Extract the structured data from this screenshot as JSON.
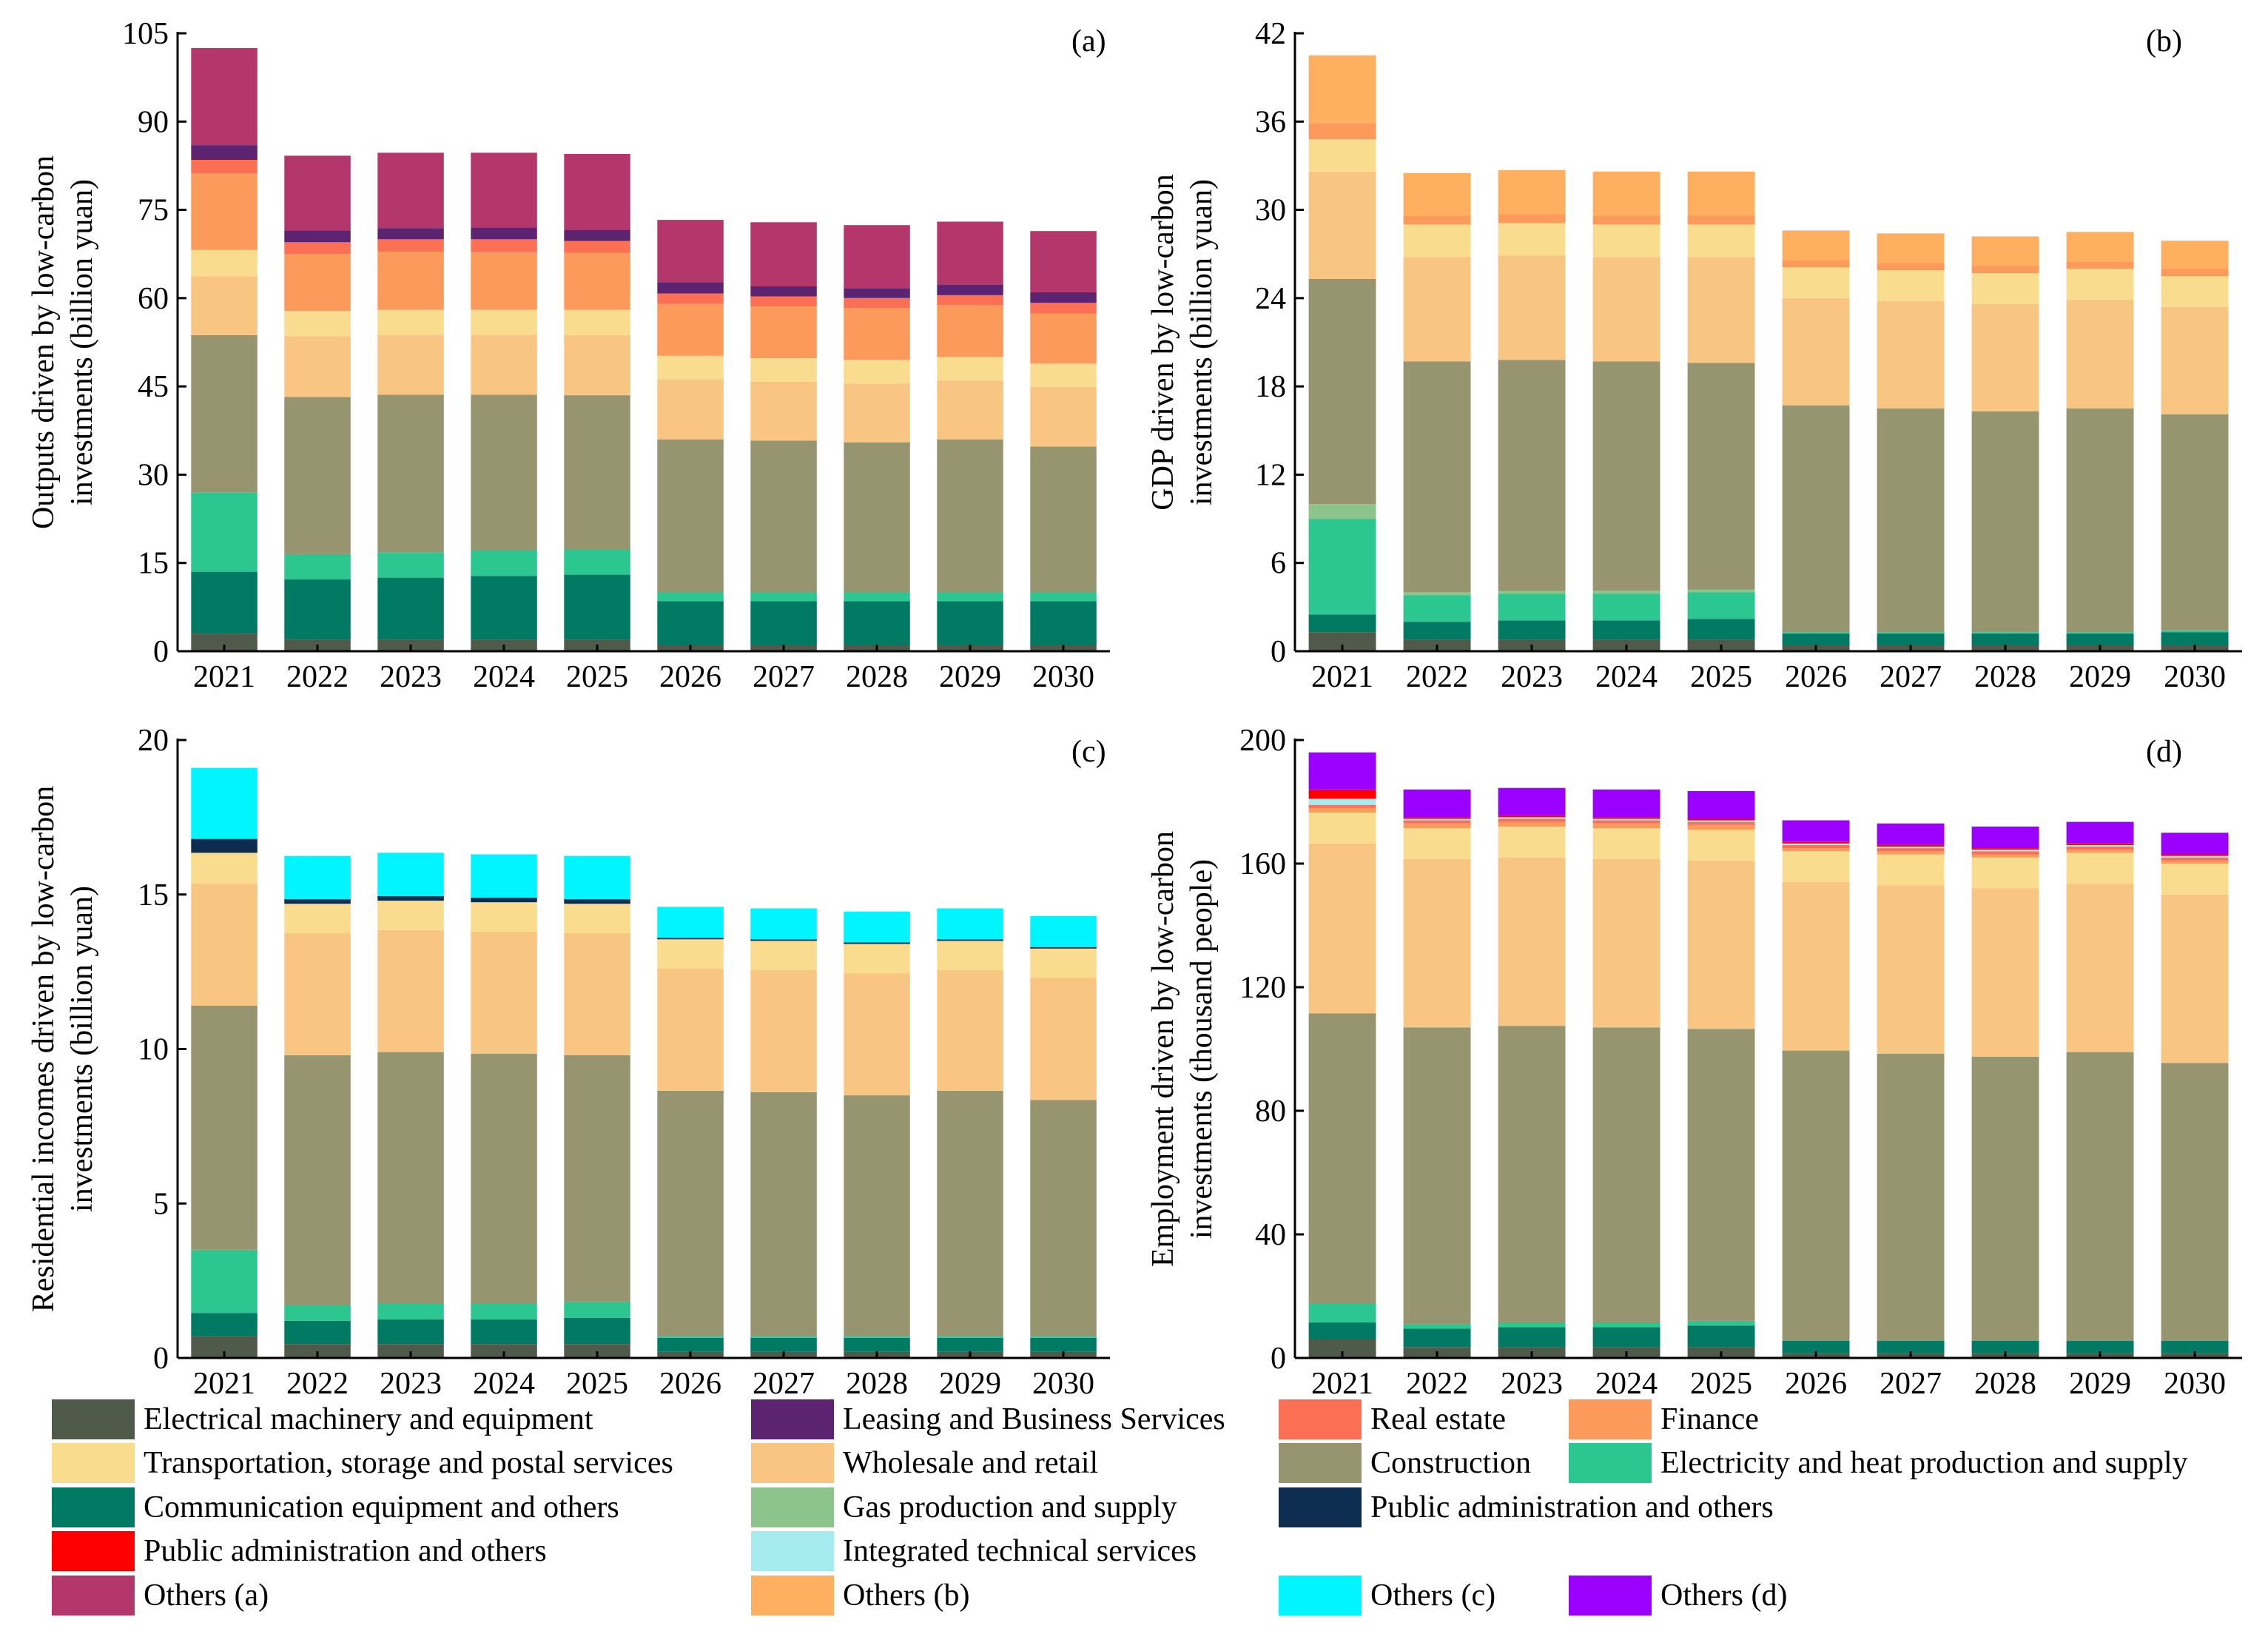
{
  "sectors": [
    {
      "key": "elec_mach",
      "name": "Electrical machinery and equipment",
      "color": "#4f5a4b"
    },
    {
      "key": "comm",
      "name": "Communication equipment and others",
      "color": "#007a63"
    },
    {
      "key": "elec_heat",
      "name": "Electricity and heat production and supply",
      "color": "#2cc791"
    },
    {
      "key": "gas",
      "name": "Gas production and supply",
      "color": "#8cc48b"
    },
    {
      "key": "construction",
      "name": "Construction",
      "color": "#979470"
    },
    {
      "key": "wholesale",
      "name": "Wholesale and retail",
      "color": "#f8c583"
    },
    {
      "key": "transport",
      "name": "Transportation, storage and postal services",
      "color": "#f9dc8e"
    },
    {
      "key": "finance",
      "name": "Finance",
      "color": "#fb9a5b"
    },
    {
      "key": "real_estate",
      "name": "Real estate",
      "color": "#fb6f55"
    },
    {
      "key": "leasing",
      "name": "Leasing and Business Services",
      "color": "#5c2470"
    },
    {
      "key": "pub_admin_navy",
      "name": "Public administration and others",
      "color": "#0c2d4f"
    },
    {
      "key": "pub_admin_red",
      "name": "Public administration and others",
      "color": "#ff0000"
    },
    {
      "key": "integrated",
      "name": "Integrated technical services",
      "color": "#a6ecef"
    },
    {
      "key": "others_a",
      "name": "Others (a)",
      "color": "#b3376a"
    },
    {
      "key": "others_b",
      "name": "Others (b)",
      "color": "#feb060"
    },
    {
      "key": "others_c",
      "name": "Others (c)",
      "color": "#00f5ff"
    },
    {
      "key": "others_d",
      "name": "Others (d)",
      "color": "#9b00ff"
    }
  ],
  "legend_rows": [
    [
      "elec_mach",
      "leasing",
      "real_estate",
      "finance"
    ],
    [
      "transport",
      "wholesale",
      "construction",
      "elec_heat"
    ],
    [
      "comm",
      "gas",
      "pub_admin_navy"
    ],
    [
      "pub_admin_red",
      "integrated"
    ],
    [
      "others_a",
      "others_b",
      "others_c",
      "others_d"
    ]
  ],
  "chart_data": [
    {
      "id": "a",
      "panel_label": "(a)",
      "type": "bar",
      "stacked": true,
      "ylabel": [
        "Outputs driven by low-carbon",
        "investments (billion yuan)"
      ],
      "ylim": [
        0,
        105
      ],
      "yticks": [
        0,
        15,
        30,
        45,
        60,
        75,
        90,
        105
      ],
      "categories": [
        "2021",
        "2022",
        "2023",
        "2024",
        "2025",
        "2026",
        "2027",
        "2028",
        "2029",
        "2030"
      ],
      "series": [
        {
          "key": "elec_mach",
          "values": [
            3.0,
            2.0,
            2.0,
            2.0,
            2.0,
            1.0,
            1.0,
            1.0,
            1.0,
            1.0
          ]
        },
        {
          "key": "comm",
          "values": [
            10.5,
            10.2,
            10.5,
            10.8,
            11.0,
            7.5,
            7.5,
            7.5,
            7.5,
            7.5
          ]
        },
        {
          "key": "elec_heat",
          "values": [
            13.5,
            4.3,
            4.3,
            4.3,
            4.3,
            1.5,
            1.5,
            1.5,
            1.5,
            1.5
          ]
        },
        {
          "key": "construction",
          "values": [
            26.7,
            26.7,
            26.8,
            26.5,
            26.2,
            26.0,
            25.8,
            25.5,
            26.0,
            24.8
          ]
        },
        {
          "key": "wholesale",
          "values": [
            10.0,
            10.3,
            10.2,
            10.2,
            10.2,
            10.2,
            10.0,
            10.0,
            10.0,
            10.1
          ]
        },
        {
          "key": "transport",
          "values": [
            4.5,
            4.3,
            4.2,
            4.2,
            4.3,
            4.0,
            4.0,
            4.0,
            4.0,
            4.0
          ]
        },
        {
          "key": "finance",
          "values": [
            13.0,
            9.7,
            9.9,
            9.8,
            9.7,
            8.8,
            8.8,
            8.8,
            8.8,
            8.5
          ]
        },
        {
          "key": "real_estate",
          "values": [
            2.3,
            2.0,
            2.1,
            2.2,
            2.0,
            1.8,
            1.7,
            1.7,
            1.7,
            1.8
          ]
        },
        {
          "key": "leasing",
          "values": [
            2.5,
            2.0,
            1.9,
            2.0,
            1.9,
            1.9,
            1.7,
            1.7,
            1.8,
            1.8
          ]
        },
        {
          "key": "others_a",
          "values": [
            16.5,
            12.7,
            12.8,
            12.7,
            12.9,
            10.6,
            10.9,
            10.7,
            10.7,
            10.4
          ]
        }
      ]
    },
    {
      "id": "b",
      "panel_label": "(b)",
      "type": "bar",
      "stacked": true,
      "ylabel": [
        "GDP driven by low-carbon",
        "investments (billion yuan)"
      ],
      "ylim": [
        0,
        42
      ],
      "yticks": [
        0,
        6,
        12,
        18,
        24,
        30,
        36,
        42
      ],
      "categories": [
        "2021",
        "2022",
        "2023",
        "2024",
        "2025",
        "2026",
        "2027",
        "2028",
        "2029",
        "2030"
      ],
      "series": [
        {
          "key": "elec_mach",
          "values": [
            1.3,
            0.8,
            0.8,
            0.8,
            0.8,
            0.4,
            0.4,
            0.4,
            0.4,
            0.4
          ]
        },
        {
          "key": "comm",
          "values": [
            1.2,
            1.2,
            1.3,
            1.3,
            1.4,
            0.8,
            0.8,
            0.8,
            0.8,
            0.9
          ]
        },
        {
          "key": "elec_heat",
          "values": [
            6.5,
            1.8,
            1.8,
            1.8,
            1.8,
            0.1,
            0.1,
            0.1,
            0.1,
            0.1
          ]
        },
        {
          "key": "gas",
          "values": [
            1.0,
            0.2,
            0.2,
            0.2,
            0.2,
            0.0,
            0.0,
            0.0,
            0.0,
            0.0
          ]
        },
        {
          "key": "construction",
          "values": [
            15.3,
            15.7,
            15.7,
            15.6,
            15.4,
            15.4,
            15.2,
            15.0,
            15.2,
            14.7
          ]
        },
        {
          "key": "wholesale",
          "values": [
            7.3,
            7.1,
            7.1,
            7.1,
            7.2,
            7.3,
            7.3,
            7.3,
            7.4,
            7.3
          ]
        },
        {
          "key": "transport",
          "values": [
            2.2,
            2.2,
            2.2,
            2.2,
            2.2,
            2.1,
            2.1,
            2.1,
            2.1,
            2.1
          ]
        },
        {
          "key": "finance",
          "values": [
            1.1,
            0.6,
            0.6,
            0.6,
            0.6,
            0.5,
            0.5,
            0.5,
            0.5,
            0.5
          ]
        },
        {
          "key": "others_b",
          "values": [
            4.6,
            2.9,
            3.0,
            3.0,
            3.0,
            2.0,
            2.0,
            2.0,
            2.0,
            1.9
          ]
        }
      ]
    },
    {
      "id": "c",
      "panel_label": "(c)",
      "type": "bar",
      "stacked": true,
      "ylabel": [
        "Residential incomes driven by low-carbon",
        "investments (billion yuan)"
      ],
      "ylim": [
        0,
        20
      ],
      "yticks": [
        0,
        5,
        10,
        15,
        20
      ],
      "categories": [
        "2021",
        "2022",
        "2023",
        "2024",
        "2025",
        "2026",
        "2027",
        "2028",
        "2029",
        "2030"
      ],
      "series": [
        {
          "key": "elec_mach",
          "values": [
            0.7,
            0.45,
            0.45,
            0.45,
            0.45,
            0.2,
            0.2,
            0.2,
            0.2,
            0.2
          ]
        },
        {
          "key": "comm",
          "values": [
            0.75,
            0.75,
            0.8,
            0.8,
            0.85,
            0.45,
            0.45,
            0.45,
            0.45,
            0.45
          ]
        },
        {
          "key": "elec_heat",
          "values": [
            2.05,
            0.5,
            0.5,
            0.5,
            0.5,
            0.05,
            0.05,
            0.05,
            0.05,
            0.05
          ]
        },
        {
          "key": "construction",
          "values": [
            7.9,
            8.1,
            8.15,
            8.1,
            8.0,
            7.95,
            7.9,
            7.8,
            7.95,
            7.65
          ]
        },
        {
          "key": "wholesale",
          "values": [
            3.95,
            3.95,
            3.95,
            3.95,
            3.95,
            3.95,
            3.95,
            3.95,
            3.9,
            3.95
          ]
        },
        {
          "key": "transport",
          "values": [
            1.0,
            0.95,
            0.95,
            0.95,
            0.95,
            0.95,
            0.95,
            0.95,
            0.95,
            0.95
          ]
        },
        {
          "key": "pub_admin_navy",
          "values": [
            0.45,
            0.15,
            0.15,
            0.15,
            0.15,
            0.05,
            0.05,
            0.05,
            0.05,
            0.05
          ]
        },
        {
          "key": "others_c",
          "values": [
            2.3,
            1.4,
            1.4,
            1.4,
            1.4,
            1.0,
            1.0,
            1.0,
            1.0,
            1.0
          ]
        }
      ]
    },
    {
      "id": "d",
      "panel_label": "(d)",
      "type": "bar",
      "stacked": true,
      "ylabel": [
        "Employment driven by low-carbon",
        "investments  (thousand people)"
      ],
      "ylim": [
        0,
        200
      ],
      "yticks": [
        0,
        40,
        80,
        120,
        160,
        200
      ],
      "categories": [
        "2021",
        "2022",
        "2023",
        "2024",
        "2025",
        "2026",
        "2027",
        "2028",
        "2029",
        "2030"
      ],
      "series": [
        {
          "key": "elec_mach",
          "values": [
            6.0,
            3.5,
            3.5,
            3.5,
            3.5,
            1.5,
            1.5,
            1.5,
            1.5,
            1.5
          ]
        },
        {
          "key": "comm",
          "values": [
            5.5,
            6.0,
            6.5,
            6.5,
            7.0,
            4.0,
            4.0,
            4.0,
            4.0,
            4.0
          ]
        },
        {
          "key": "elec_heat",
          "values": [
            6.0,
            1.5,
            1.5,
            1.5,
            1.5,
            0.0,
            0.0,
            0.0,
            0.0,
            0.0
          ]
        },
        {
          "key": "construction",
          "values": [
            94.0,
            96.0,
            96.0,
            95.5,
            94.5,
            94.0,
            93.0,
            92.0,
            93.5,
            90.0
          ]
        },
        {
          "key": "wholesale",
          "values": [
            55.0,
            54.5,
            54.5,
            54.5,
            54.5,
            54.5,
            54.5,
            54.5,
            54.5,
            54.5
          ]
        },
        {
          "key": "transport",
          "values": [
            10.0,
            10.0,
            10.0,
            10.0,
            10.0,
            10.0,
            10.0,
            10.0,
            10.0,
            10.0
          ]
        },
        {
          "key": "finance",
          "values": [
            1.5,
            1.5,
            1.5,
            1.5,
            1.5,
            1.0,
            1.0,
            1.0,
            1.0,
            1.0
          ]
        },
        {
          "key": "real_estate",
          "values": [
            1.0,
            1.0,
            1.0,
            1.0,
            1.0,
            1.0,
            1.0,
            1.0,
            1.0,
            1.0
          ]
        },
        {
          "key": "integrated",
          "values": [
            2.0,
            0.5,
            0.5,
            0.5,
            0.5,
            0.5,
            0.5,
            0.5,
            0.5,
            0.5
          ]
        },
        {
          "key": "pub_admin_red",
          "values": [
            3.0,
            0.5,
            0.5,
            0.5,
            0.5,
            0.5,
            0.5,
            0.5,
            0.5,
            0.5
          ]
        },
        {
          "key": "others_d",
          "values": [
            12.0,
            9.0,
            9.0,
            9.0,
            9.0,
            7.0,
            7.0,
            7.0,
            7.0,
            7.0
          ]
        }
      ]
    }
  ]
}
